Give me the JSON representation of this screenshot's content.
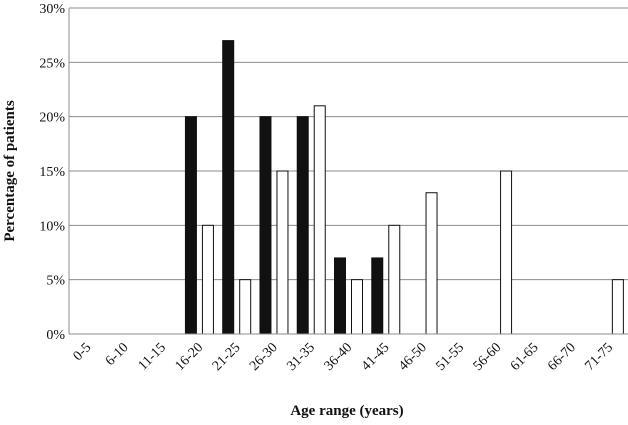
{
  "chart_data": {
    "type": "bar",
    "xlabel": "Age range (years)",
    "ylabel": "Percentage of patients",
    "ylim": [
      0,
      30
    ],
    "yticks": [
      "0%",
      "5%",
      "10%",
      "15%",
      "20%",
      "25%",
      "30%"
    ],
    "grid": true,
    "legend": "none",
    "categories": [
      "0-5",
      "6-10",
      "11-15",
      "16-20",
      "21-25",
      "26-30",
      "31-35",
      "36-40",
      "41-45",
      "46-50",
      "51-55",
      "56-60",
      "61-65",
      "66-70",
      "71-75"
    ],
    "series": [
      {
        "fill": "#111111",
        "values": [
          0,
          0,
          0,
          20,
          27,
          20,
          20,
          7,
          7,
          0,
          0,
          0,
          0,
          0,
          0
        ]
      },
      {
        "fill": "#ffffff",
        "values": [
          0,
          0,
          0,
          10,
          5,
          15,
          21,
          5,
          10,
          13,
          0,
          15,
          0,
          0,
          5
        ]
      }
    ],
    "colors": {
      "bar_outline": "#111111",
      "grid": "#8c8c8c",
      "axis": "#8c8c8c"
    }
  }
}
